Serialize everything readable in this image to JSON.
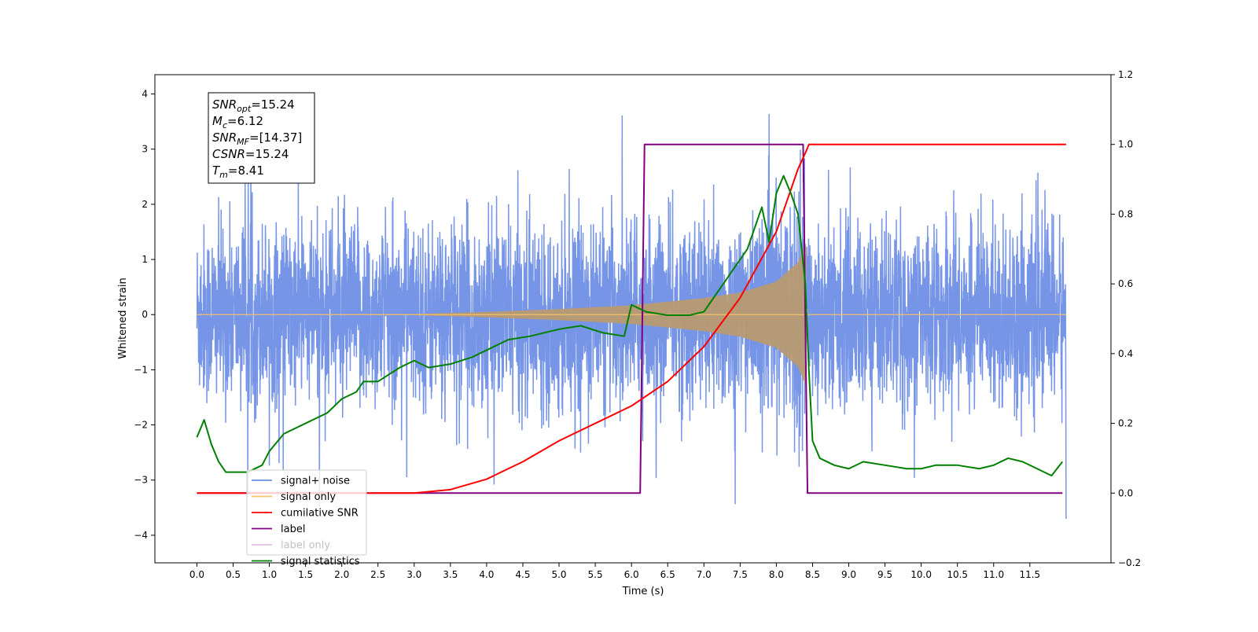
{
  "chart_data": {
    "type": "line",
    "xlabel": "Time (s)",
    "ylabel": "Whitened strain",
    "xlim": [
      -0.58,
      12.62
    ],
    "ylim": [
      -4.5,
      4.35
    ],
    "y2lim": [
      -0.2,
      1.2
    ],
    "x_ticks": [
      0.0,
      0.5,
      1.0,
      1.5,
      2.0,
      2.5,
      3.0,
      3.5,
      4.0,
      4.5,
      5.0,
      5.5,
      6.0,
      6.5,
      7.0,
      7.5,
      8.0,
      8.5,
      9.0,
      9.5,
      10.0,
      10.5,
      11.0,
      11.5
    ],
    "y_ticks": [
      -4,
      -3,
      -2,
      -1,
      0,
      1,
      2,
      3,
      4
    ],
    "y2_ticks": [
      -0.2,
      0.0,
      0.2,
      0.4,
      0.6,
      0.8,
      1.0,
      1.2
    ],
    "grid": false,
    "legend_position": "lower-left",
    "annotation_lines": [
      {
        "label": "SNR",
        "sub": "opt",
        "value": "=15.24"
      },
      {
        "label": "M",
        "sub": "c",
        "value": "=6.12"
      },
      {
        "label": "SNR",
        "sub": "MF",
        "value": "=[14.37]"
      },
      {
        "label": "CSNR",
        "sub": "",
        "value": "=15.24"
      },
      {
        "label": "T",
        "sub": "m",
        "value": "=8.41"
      }
    ],
    "series": [
      {
        "name": "signal+ noise",
        "color": "#6f8fe6",
        "axis": "left",
        "kind": "noise",
        "x_range": [
          0.0,
          12.0
        ],
        "noise_sigma": 0.95,
        "approx_envelope": [
          [
            0.0,
            -2.8,
            3.5
          ],
          [
            2.0,
            -2.9,
            3.5
          ],
          [
            6.5,
            -3.2,
            3.9
          ],
          [
            8.4,
            -3.1,
            3.9
          ],
          [
            12.0,
            -4.1,
            3.9
          ]
        ]
      },
      {
        "name": "signal only",
        "color": "#f5c06b",
        "axis": "left",
        "kind": "chirp",
        "x_range": [
          0.0,
          8.41
        ],
        "amplitude_points": [
          [
            0.0,
            0.0
          ],
          [
            3.0,
            0.01
          ],
          [
            4.0,
            0.05
          ],
          [
            5.0,
            0.1
          ],
          [
            6.0,
            0.17
          ],
          [
            7.0,
            0.3
          ],
          [
            7.5,
            0.4
          ],
          [
            8.0,
            0.6
          ],
          [
            8.3,
            0.95
          ],
          [
            8.41,
            1.3
          ]
        ]
      },
      {
        "name": "cumilative SNR",
        "color": "#ff0000",
        "axis": "right",
        "x": [
          0.0,
          3.0,
          3.5,
          4.0,
          4.5,
          5.0,
          5.5,
          6.0,
          6.5,
          7.0,
          7.5,
          8.0,
          8.3,
          8.41,
          8.45,
          12.0
        ],
        "y": [
          0.0,
          0.0,
          0.01,
          0.04,
          0.09,
          0.15,
          0.2,
          0.25,
          0.32,
          0.42,
          0.56,
          0.75,
          0.93,
          0.98,
          1.0,
          1.0
        ]
      },
      {
        "name": "label",
        "color": "#800080",
        "axis": "right",
        "x": [
          0.0,
          6.12,
          6.18,
          8.37,
          8.43,
          11.95
        ],
        "y": [
          0.0,
          0.0,
          1.0,
          1.0,
          0.0,
          0.0
        ]
      },
      {
        "name": "label only",
        "color": "#800080",
        "axis": "right",
        "hidden": true
      },
      {
        "name": "signal statistics",
        "color": "#008000",
        "axis": "right",
        "x": [
          0.0,
          0.1,
          0.2,
          0.3,
          0.4,
          0.5,
          0.7,
          0.9,
          1.0,
          1.2,
          1.5,
          1.8,
          2.0,
          2.2,
          2.3,
          2.5,
          2.8,
          3.0,
          3.2,
          3.5,
          3.8,
          4.0,
          4.3,
          4.6,
          5.0,
          5.3,
          5.6,
          5.9,
          6.0,
          6.2,
          6.5,
          6.8,
          7.0,
          7.2,
          7.4,
          7.6,
          7.7,
          7.8,
          7.9,
          8.0,
          8.1,
          8.2,
          8.3,
          8.4,
          8.45,
          8.5,
          8.6,
          8.8,
          9.0,
          9.2,
          9.5,
          9.8,
          10.0,
          10.2,
          10.5,
          10.8,
          11.0,
          11.2,
          11.4,
          11.6,
          11.8,
          11.95
        ],
        "y": [
          0.16,
          0.21,
          0.14,
          0.09,
          0.06,
          0.06,
          0.06,
          0.08,
          0.12,
          0.17,
          0.2,
          0.23,
          0.27,
          0.29,
          0.32,
          0.32,
          0.36,
          0.38,
          0.36,
          0.37,
          0.39,
          0.41,
          0.44,
          0.45,
          0.47,
          0.48,
          0.46,
          0.45,
          0.54,
          0.52,
          0.51,
          0.51,
          0.52,
          0.58,
          0.64,
          0.7,
          0.76,
          0.82,
          0.72,
          0.86,
          0.91,
          0.86,
          0.8,
          0.6,
          0.35,
          0.15,
          0.1,
          0.08,
          0.07,
          0.09,
          0.08,
          0.07,
          0.07,
          0.08,
          0.08,
          0.07,
          0.08,
          0.1,
          0.09,
          0.07,
          0.05,
          0.09
        ]
      }
    ]
  }
}
